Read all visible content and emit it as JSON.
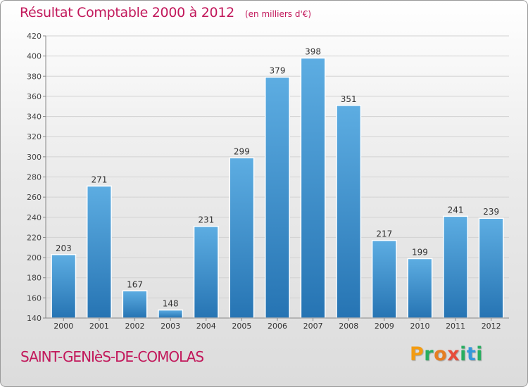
{
  "header": {
    "title": "Résultat Comptable 2000 à 2012",
    "subtitle": "(en milliers d'€)"
  },
  "footer": {
    "commune": "SAINT-GENIèS-DE-COMOLAS",
    "brand_letters": [
      "P",
      "r",
      "o",
      "x",
      "i",
      "t",
      "i"
    ]
  },
  "colors": {
    "title": "#c2185b",
    "bar_top": "#5dade2",
    "bar_bottom": "#2674b3",
    "brand": [
      "#f39c12",
      "#27ae60",
      "#e67e22",
      "#e74c3c",
      "#27ae60",
      "#3498db",
      "#27ae60"
    ]
  },
  "chart_data": {
    "type": "bar",
    "categories": [
      "2000",
      "2001",
      "2002",
      "2003",
      "2004",
      "2005",
      "2006",
      "2007",
      "2008",
      "2009",
      "2010",
      "2011",
      "2012"
    ],
    "values": [
      203,
      271,
      167,
      148,
      231,
      299,
      379,
      398,
      351,
      217,
      199,
      241,
      239
    ],
    "data_labels": [
      "203",
      "271",
      "167",
      "148",
      "231",
      "299",
      "379",
      "398",
      "351",
      "217",
      "199",
      "241",
      "239"
    ],
    "ylim": [
      140,
      420
    ],
    "yticks": [
      "140",
      "160",
      "180",
      "200",
      "220",
      "240",
      "260",
      "280",
      "300",
      "320",
      "340",
      "360",
      "380",
      "400",
      "420"
    ],
    "grid": true
  }
}
